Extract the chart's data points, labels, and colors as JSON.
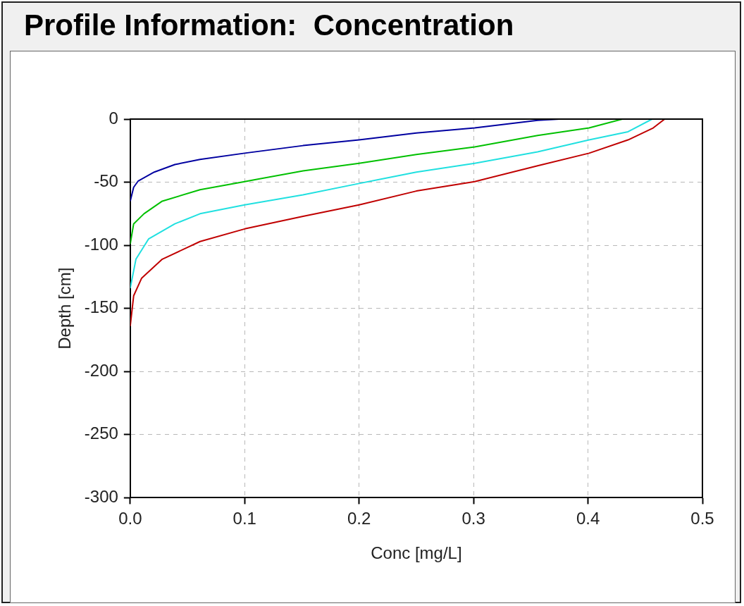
{
  "chart_data": {
    "type": "line",
    "title": "Profile Information:  Concentration",
    "xlabel": "Conc [mg/L]",
    "ylabel": "Depth [cm]",
    "xlim": [
      0,
      0.5
    ],
    "ylim": [
      -300,
      0
    ],
    "xticks": [
      {
        "value": 0,
        "label": "0.0"
      },
      {
        "value": 0.1,
        "label": "0.1"
      },
      {
        "value": 0.2,
        "label": "0.2"
      },
      {
        "value": 0.3,
        "label": "0.3"
      },
      {
        "value": 0.4,
        "label": "0.4"
      },
      {
        "value": 0.5,
        "label": "0.5"
      }
    ],
    "yticks": [
      0,
      -50,
      -100,
      -150,
      -200,
      -250,
      -300
    ],
    "grid": true,
    "legend": false,
    "marker": "none",
    "line_style": "solid",
    "series": [
      {
        "color": "#0000a0",
        "x": [
          0,
          0.003,
          0.007,
          0.021,
          0.039,
          0.061,
          0.1,
          0.151,
          0.2,
          0.25,
          0.301,
          0.356,
          0.375
        ],
        "values": [
          -65,
          -54,
          -49,
          -42,
          -36,
          -32,
          -27,
          -21,
          -16.5,
          -11,
          -7,
          -1,
          0
        ]
      },
      {
        "color": "#00c000",
        "x": [
          0,
          0.003,
          0.012,
          0.028,
          0.061,
          0.1,
          0.151,
          0.2,
          0.25,
          0.301,
          0.356,
          0.401,
          0.43
        ],
        "values": [
          -99,
          -83,
          -75,
          -65,
          -56,
          -49.5,
          -41,
          -35,
          -28,
          -22,
          -13,
          -7,
          0
        ]
      },
      {
        "color": "#20e0e0",
        "x": [
          0,
          0.005,
          0.016,
          0.039,
          0.061,
          0.1,
          0.151,
          0.2,
          0.25,
          0.301,
          0.356,
          0.401,
          0.435,
          0.456
        ],
        "values": [
          -134,
          -111,
          -95,
          -83,
          -75,
          -68,
          -60,
          -51,
          -42,
          -35,
          -26,
          -16.5,
          -10,
          0
        ]
      },
      {
        "color": "#c00000",
        "x": [
          0,
          0.003,
          0.01,
          0.028,
          0.061,
          0.1,
          0.151,
          0.2,
          0.25,
          0.301,
          0.356,
          0.401,
          0.435,
          0.457,
          0.467
        ],
        "values": [
          -164,
          -140,
          -126,
          -111,
          -97,
          -87,
          -77,
          -68,
          -57,
          -49.5,
          -37,
          -27,
          -16.5,
          -7,
          0
        ]
      }
    ]
  }
}
